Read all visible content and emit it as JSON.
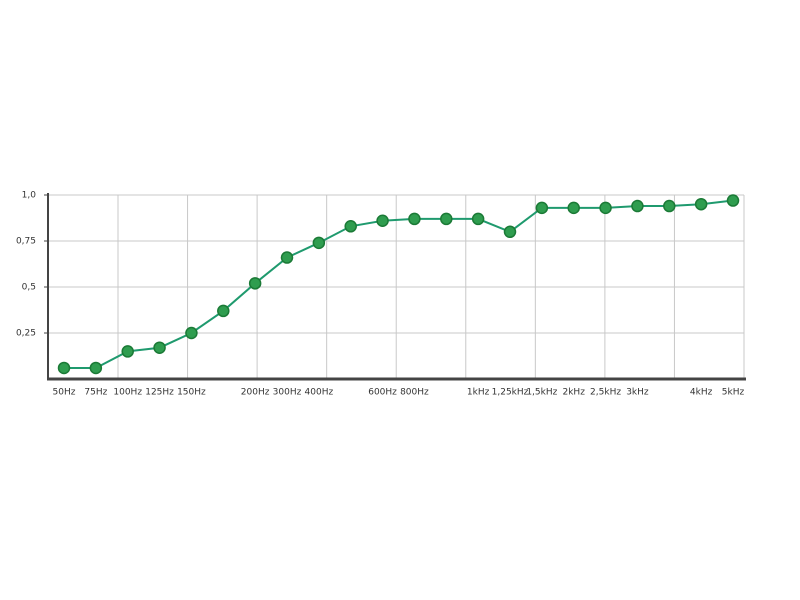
{
  "chart_data": {
    "type": "line",
    "categories": [
      "50Hz",
      "75Hz",
      "100Hz",
      "125Hz",
      "150Hz",
      null,
      "200Hz",
      "300Hz",
      "400Hz",
      null,
      "600Hz",
      "800Hz",
      null,
      "1kHz",
      "1,25kHz",
      "1,5kHz",
      "2kHz",
      "2,5kHz",
      "3kHz",
      null,
      "4kHz",
      "5kHz"
    ],
    "series": [
      {
        "color": "#1f9a6e",
        "values": [
          0.06,
          0.06,
          0.15,
          0.17,
          0.25,
          0.37,
          0.52,
          0.66,
          0.74,
          0.83,
          0.86,
          0.87,
          0.87,
          0.87,
          0.8,
          0.93,
          0.93,
          0.93,
          0.94,
          0.94,
          0.95,
          0.97
        ]
      }
    ],
    "ylim": [
      0,
      1
    ],
    "yticks": [
      {
        "value": 0.25,
        "label": "0,25"
      },
      {
        "value": 0.5,
        "label": "0,5"
      },
      {
        "value": 0.75,
        "label": "0,75"
      },
      {
        "value": 1.0,
        "label": "1,0"
      }
    ],
    "grid": true
  }
}
